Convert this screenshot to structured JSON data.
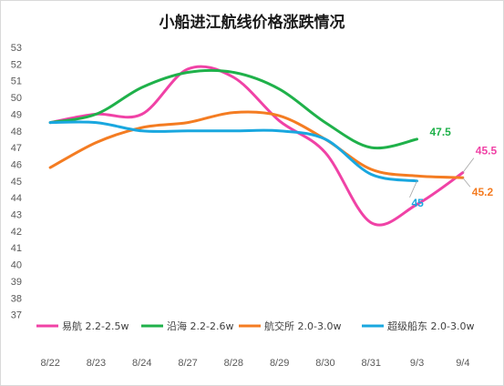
{
  "chart_data": {
    "type": "line",
    "title": "小船进江航线价格涨跌情况",
    "categories": [
      "8/22",
      "8/23",
      "8/24",
      "8/27",
      "8/28",
      "8/29",
      "8/30",
      "8/31",
      "9/3",
      "9/4"
    ],
    "y_ticks": [
      "37",
      "38",
      "39",
      "40",
      "41",
      "42",
      "43",
      "44",
      "45",
      "46",
      "47",
      "48",
      "49",
      "50",
      "51",
      "52",
      "53"
    ],
    "ylim": [
      36,
      53
    ],
    "grid": false,
    "legend_position": "bottom-inside",
    "series": [
      {
        "name": "易航 2.2-2.5w",
        "color": "#f042a6",
        "x": [
          0,
          1,
          2,
          3,
          4,
          5,
          6,
          7,
          8,
          9
        ],
        "values": [
          48.5,
          49.0,
          49.0,
          51.7,
          51.2,
          48.6,
          46.7,
          42.5,
          43.6,
          45.5
        ],
        "end_label": "45.5"
      },
      {
        "name": "沿海 2.2-2.6w",
        "color": "#1fb14a",
        "x": [
          0,
          1,
          2,
          3,
          4,
          5,
          6,
          7,
          8
        ],
        "values": [
          48.5,
          49.0,
          50.6,
          51.5,
          51.5,
          50.5,
          48.5,
          47.0,
          47.5
        ],
        "end_label": "47.5"
      },
      {
        "name": "航交所 2.0-3.0w",
        "color": "#f47c22",
        "x": [
          0,
          1,
          2,
          3,
          4,
          5,
          6,
          7,
          8,
          9
        ],
        "values": [
          45.8,
          47.3,
          48.2,
          48.5,
          49.1,
          48.9,
          47.5,
          45.7,
          45.3,
          45.2
        ],
        "end_label": "45.2"
      },
      {
        "name": "超级船东 2.0-3.0w",
        "color": "#19a7df",
        "x": [
          0,
          1,
          2,
          3,
          4,
          5,
          6,
          7,
          8
        ],
        "values": [
          48.5,
          48.5,
          48.0,
          48.0,
          48.0,
          48.0,
          47.5,
          45.4,
          45.0
        ],
        "end_label": "45"
      }
    ]
  }
}
